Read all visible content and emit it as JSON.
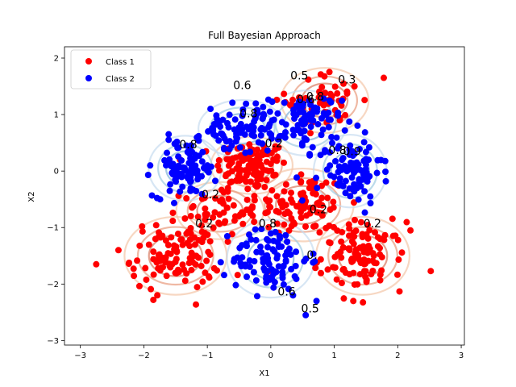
{
  "chart_data": {
    "type": "scatter",
    "title": "Full Bayesian Approach",
    "xlabel": "X1",
    "ylabel": "X2",
    "xlim": [
      -3.25,
      3.05
    ],
    "ylim": [
      -3.08,
      2.2
    ],
    "xticks": [
      -3,
      -2,
      -1,
      0,
      1,
      2,
      3
    ],
    "yticks": [
      -3,
      -2,
      -1,
      0,
      1,
      2
    ],
    "grid": false,
    "legend_position": "top-left",
    "series": [
      {
        "name": "Class 1",
        "color": "#ff0000",
        "clusters": [
          {
            "center": [
              -0.3,
              0.1
            ],
            "sd": [
              0.28,
              0.22
            ],
            "n": 110
          },
          {
            "center": [
              0.5,
              -0.6
            ],
            "sd": [
              0.35,
              0.28
            ],
            "n": 90
          },
          {
            "center": [
              -0.8,
              -0.7
            ],
            "sd": [
              0.3,
              0.22
            ],
            "n": 60
          },
          {
            "center": [
              0.85,
              1.25
            ],
            "sd": [
              0.3,
              0.25
            ],
            "n": 55
          },
          {
            "center": [
              -1.5,
              -1.5
            ],
            "sd": [
              0.35,
              0.3
            ],
            "n": 110
          },
          {
            "center": [
              1.45,
              -1.5
            ],
            "sd": [
              0.32,
              0.3
            ],
            "n": 110
          }
        ],
        "extra_points": [
          [
            -2.75,
            -1.65
          ],
          [
            2.52,
            -1.77
          ],
          [
            -1.85,
            -2.28
          ],
          [
            1.3,
            -2.3
          ],
          [
            1.78,
            1.65
          ],
          [
            -2.4,
            -1.4
          ],
          [
            2.2,
            -1.05
          ]
        ]
      },
      {
        "name": "Class 2",
        "color": "#0000ff",
        "clusters": [
          {
            "center": [
              -0.45,
              0.75
            ],
            "sd": [
              0.3,
              0.22
            ],
            "n": 80
          },
          {
            "center": [
              0.55,
              0.85
            ],
            "sd": [
              0.28,
              0.25
            ],
            "n": 80
          },
          {
            "center": [
              -1.35,
              0.05
            ],
            "sd": [
              0.25,
              0.25
            ],
            "n": 90
          },
          {
            "center": [
              1.25,
              0.0
            ],
            "sd": [
              0.25,
              0.28
            ],
            "n": 90
          },
          {
            "center": [
              0.0,
              -1.55
            ],
            "sd": [
              0.3,
              0.3
            ],
            "n": 100
          }
        ],
        "extra_points": [
          [
            0.55,
            -2.55
          ],
          [
            0.72,
            -2.3
          ],
          [
            -0.95,
            1.1
          ],
          [
            1.55,
            0.42
          ],
          [
            -0.9,
            0.65
          ],
          [
            -1.9,
            0.1
          ],
          [
            0.35,
            -2.2
          ]
        ]
      }
    ],
    "contour_labels": [
      {
        "text": "0.5",
        "x": 0.45,
        "y": 1.62
      },
      {
        "text": "0.3",
        "x": 1.2,
        "y": 1.55
      },
      {
        "text": "0.6",
        "x": -0.45,
        "y": 1.45
      },
      {
        "text": "0.6",
        "x": 0.55,
        "y": 1.2
      },
      {
        "text": "0.8",
        "x": 0.7,
        "y": 1.25
      },
      {
        "text": "0.8",
        "x": -0.35,
        "y": 0.95
      },
      {
        "text": "0.8",
        "x": -1.3,
        "y": 0.4
      },
      {
        "text": "0.2",
        "x": 0.05,
        "y": 0.42
      },
      {
        "text": "0.8",
        "x": 1.05,
        "y": 0.3
      },
      {
        "text": "0.9",
        "x": 1.28,
        "y": 0.28
      },
      {
        "text": "0.2",
        "x": -0.95,
        "y": -0.48
      },
      {
        "text": "0.2",
        "x": 0.75,
        "y": -0.75
      },
      {
        "text": "0.8",
        "x": -0.05,
        "y": -1.0
      },
      {
        "text": "0.2",
        "x": -1.05,
        "y": -1.0
      },
      {
        "text": "0.2",
        "x": 1.6,
        "y": -1.0
      },
      {
        "text": "0.",
        "x": 0.65,
        "y": -1.55
      },
      {
        "text": "0.6",
        "x": 0.25,
        "y": -2.2
      },
      {
        "text": "0.5",
        "x": 0.62,
        "y": -2.5
      }
    ],
    "legend": [
      "Class 1",
      "Class 2"
    ]
  }
}
